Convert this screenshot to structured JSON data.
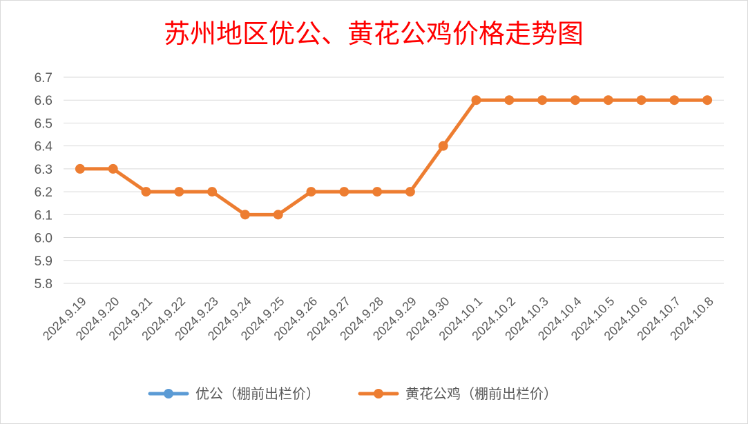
{
  "chart_data": {
    "type": "line",
    "title": "苏州地区优公、黄花公鸡价格走势图",
    "categories": [
      "2024.9.19",
      "2024.9.20",
      "2024.9.21",
      "2024.9.22",
      "2024.9.23",
      "2024.9.24",
      "2024.9.25",
      "2024.9.26",
      "2024.9.27",
      "2024.9.28",
      "2024.9.29",
      "2024.9.30",
      "2024.10.1",
      "2024.10.2",
      "2024.10.3",
      "2024.10.4",
      "2024.10.5",
      "2024.10.6",
      "2024.10.7",
      "2024.10.8"
    ],
    "ylim": [
      5.8,
      6.7
    ],
    "yticks": [
      "6.7",
      "6.6",
      "6.5",
      "6.4",
      "6.3",
      "6.2",
      "6.1",
      "6.0",
      "5.9",
      "5.8"
    ],
    "grid": true,
    "legend_position": "bottom",
    "series": [
      {
        "name": "优公（棚前出栏价）",
        "color": "#5b9bd5",
        "values": [
          null,
          null,
          null,
          null,
          null,
          null,
          null,
          null,
          null,
          null,
          null,
          null,
          null,
          null,
          null,
          null,
          null,
          null,
          null,
          null
        ]
      },
      {
        "name": "黄花公鸡（棚前出栏价）",
        "color": "#ed7d31",
        "values": [
          6.3,
          6.3,
          6.2,
          6.2,
          6.2,
          6.1,
          6.1,
          6.2,
          6.2,
          6.2,
          6.2,
          6.4,
          6.6,
          6.6,
          6.6,
          6.6,
          6.6,
          6.6,
          6.6,
          6.6
        ]
      }
    ]
  }
}
